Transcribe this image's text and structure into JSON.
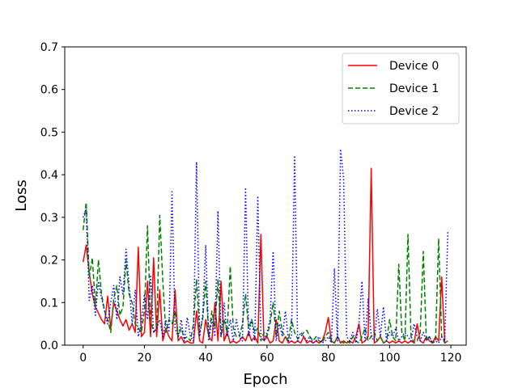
{
  "chart_data": {
    "type": "line",
    "title": "",
    "xlabel": "Epoch",
    "ylabel": "Loss",
    "xlim": [
      -6,
      125
    ],
    "ylim": [
      0,
      0.7
    ],
    "xticks": [
      0,
      20,
      40,
      60,
      80,
      100,
      120
    ],
    "yticks": [
      0.0,
      0.1,
      0.2,
      0.3,
      0.4,
      0.5,
      0.6,
      0.7
    ],
    "xtick_labels": [
      "0",
      "20",
      "40",
      "60",
      "80",
      "100",
      "120"
    ],
    "ytick_labels": [
      "0.0",
      "0.1",
      "0.2",
      "0.3",
      "0.4",
      "0.5",
      "0.6",
      "0.7"
    ],
    "grid": false,
    "legend_position": "top-right",
    "x": [
      0,
      1,
      2,
      3,
      4,
      5,
      6,
      7,
      8,
      9,
      10,
      11,
      12,
      13,
      14,
      15,
      16,
      17,
      18,
      19,
      20,
      21,
      22,
      23,
      24,
      25,
      26,
      27,
      28,
      29,
      30,
      31,
      32,
      33,
      34,
      35,
      36,
      37,
      38,
      39,
      40,
      41,
      42,
      43,
      44,
      45,
      46,
      47,
      48,
      49,
      50,
      51,
      52,
      53,
      54,
      55,
      56,
      57,
      58,
      59,
      60,
      61,
      62,
      63,
      64,
      65,
      66,
      67,
      68,
      69,
      70,
      71,
      72,
      73,
      74,
      75,
      76,
      77,
      78,
      79,
      80,
      81,
      82,
      83,
      84,
      85,
      86,
      87,
      88,
      89,
      90,
      91,
      92,
      93,
      94,
      95,
      96,
      97,
      98,
      99,
      100,
      101,
      102,
      103,
      104,
      105,
      106,
      107,
      108,
      109,
      110,
      111,
      112,
      113,
      114,
      115,
      116,
      117,
      118,
      119
    ],
    "series": [
      {
        "name": "Device 0",
        "color": "#ff0000",
        "style": "solid",
        "values": [
          0.195,
          0.235,
          0.17,
          0.12,
          0.09,
          0.075,
          0.06,
          0.05,
          0.115,
          0.04,
          0.1,
          0.08,
          0.06,
          0.045,
          0.06,
          0.035,
          0.05,
          0.03,
          0.23,
          0.02,
          0.03,
          0.15,
          0.02,
          0.205,
          0.02,
          0.13,
          0.01,
          0.04,
          0.02,
          0.01,
          0.13,
          0.01,
          0.02,
          0.005,
          0.01,
          0.005,
          0.005,
          0.08,
          0.01,
          0.005,
          0.06,
          0.02,
          0.01,
          0.1,
          0.01,
          0.15,
          0.01,
          0.03,
          0.005,
          0.01,
          0.005,
          0.01,
          0.02,
          0.01,
          0.03,
          0.01,
          0.02,
          0.005,
          0.26,
          0.01,
          0.02,
          0.005,
          0.01,
          0.06,
          0.01,
          0.005,
          0.02,
          0.005,
          0.01,
          0.005,
          0.01,
          0.005,
          0.02,
          0.005,
          0.01,
          0.005,
          0.01,
          0.005,
          0.01,
          0.03,
          0.065,
          0.01,
          0.005,
          0.02,
          0.005,
          0.01,
          0.005,
          0.01,
          0.005,
          0.02,
          0.05,
          0.005,
          0.01,
          0.02,
          0.415,
          0.005,
          0.01,
          0.02,
          0.005,
          0.01,
          0.005,
          0.01,
          0.005,
          0.01,
          0.005,
          0.01,
          0.005,
          0.01,
          0.005,
          0.05,
          0.01,
          0.005,
          0.02,
          0.01,
          0.005,
          0.02,
          0.01,
          0.16,
          0.005,
          0.01
        ]
      },
      {
        "name": "Device 1",
        "color": "#008000",
        "style": "dashed",
        "values": [
          0.27,
          0.335,
          0.16,
          0.205,
          0.09,
          0.2,
          0.12,
          0.08,
          0.06,
          0.03,
          0.11,
          0.14,
          0.07,
          0.09,
          0.2,
          0.12,
          0.1,
          0.05,
          0.04,
          0.03,
          0.08,
          0.28,
          0.06,
          0.03,
          0.04,
          0.305,
          0.15,
          0.03,
          0.06,
          0.05,
          0.08,
          0.02,
          0.04,
          0.015,
          0.02,
          0.01,
          0.05,
          0.155,
          0.03,
          0.06,
          0.15,
          0.02,
          0.08,
          0.04,
          0.155,
          0.02,
          0.06,
          0.03,
          0.185,
          0.04,
          0.02,
          0.02,
          0.05,
          0.12,
          0.04,
          0.06,
          0.03,
          0.04,
          0.01,
          0.03,
          0.02,
          0.05,
          0.1,
          0.02,
          0.08,
          0.03,
          0.02,
          0.01,
          0.06,
          0.03,
          0.015,
          0.02,
          0.03,
          0.035,
          0.02,
          0.01,
          0.02,
          0.01,
          0.005,
          0.02,
          0.03,
          0.01,
          0.005,
          0.02,
          0.01,
          0.005,
          0.01,
          0.005,
          0.02,
          0.01,
          0.005,
          0.02,
          0.04,
          0.01,
          0.02,
          0.03,
          0.01,
          0.02,
          0.005,
          0.01,
          0.06,
          0.02,
          0.01,
          0.19,
          0.03,
          0.01,
          0.26,
          0.02,
          0.005,
          0.01,
          0.03,
          0.22,
          0.01,
          0.02,
          0.005,
          0.01,
          0.25,
          0.02,
          0.005,
          0.01
        ]
      },
      {
        "name": "Device 2",
        "color": "#0000ff",
        "style": "dotted",
        "values": [
          0.3,
          0.32,
          0.105,
          0.14,
          0.07,
          0.15,
          0.11,
          0.08,
          0.05,
          0.1,
          0.14,
          0.06,
          0.16,
          0.12,
          0.225,
          0.14,
          0.05,
          0.13,
          0.02,
          0.05,
          0.12,
          0.06,
          0.165,
          0.03,
          0.04,
          0.06,
          0.02,
          0.06,
          0.03,
          0.36,
          0.04,
          0.02,
          0.06,
          0.01,
          0.065,
          0.02,
          0.01,
          0.43,
          0.02,
          0.07,
          0.235,
          0.01,
          0.06,
          0.02,
          0.315,
          0.02,
          0.1,
          0.02,
          0.06,
          0.01,
          0.06,
          0.02,
          0.01,
          0.37,
          0.02,
          0.06,
          0.01,
          0.35,
          0.02,
          0.01,
          0.03,
          0.06,
          0.22,
          0.01,
          0.05,
          0.02,
          0.08,
          0.01,
          0.02,
          0.445,
          0.01,
          0.03,
          0.02,
          0.01,
          0.02,
          0.005,
          0.01,
          0.02,
          0.005,
          0.01,
          0.02,
          0.005,
          0.18,
          0.01,
          0.46,
          0.39,
          0.02,
          0.01,
          0.03,
          0.005,
          0.05,
          0.15,
          0.01,
          0.11,
          0.02,
          0.01,
          0.085,
          0.02,
          0.09,
          0.01,
          0.03,
          0.02,
          0.04,
          0.01,
          0.02,
          0.03,
          0.02,
          0.01,
          0.05,
          0.02,
          0.01,
          0.03,
          0.01,
          0.02,
          0.005,
          0.01,
          0.005,
          0.02,
          0.01,
          0.265
        ]
      }
    ]
  }
}
